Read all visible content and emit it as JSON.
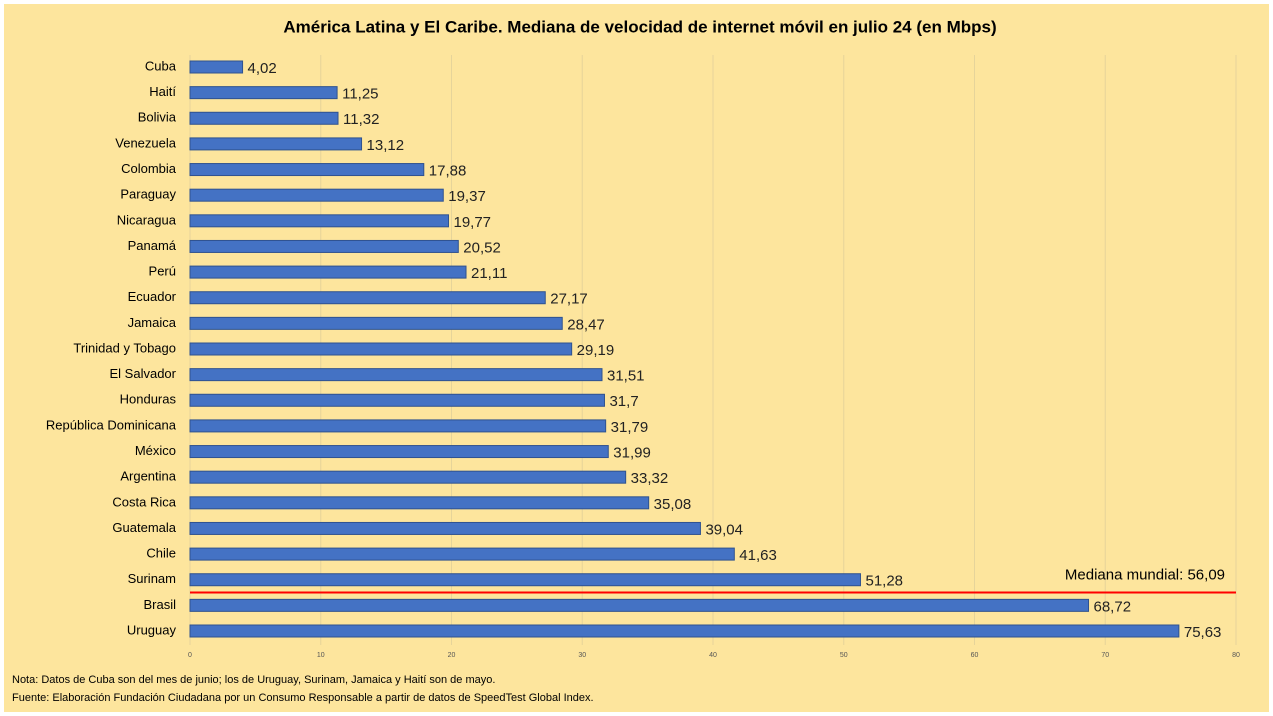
{
  "chart_data": {
    "type": "bar",
    "orientation": "horizontal",
    "title": "América Latina y El Caribe. Mediana de velocidad de internet móvil en julio 24 (en Mbps)",
    "categories": [
      "Cuba",
      "Haití",
      "Bolivia",
      "Venezuela",
      "Colombia",
      "Paraguay",
      "Nicaragua",
      "Panamá",
      "Perú",
      "Ecuador",
      "Jamaica",
      "Trinidad y Tobago",
      "El Salvador",
      "Honduras",
      "República Dominicana",
      "México",
      "Argentina",
      "Costa Rica",
      "Guatemala",
      "Chile",
      "Surinam",
      "Brasil",
      "Uruguay"
    ],
    "values": [
      4.02,
      11.25,
      11.32,
      13.12,
      17.88,
      19.37,
      19.77,
      20.52,
      21.11,
      27.17,
      28.47,
      29.19,
      31.51,
      31.7,
      31.79,
      31.99,
      33.32,
      35.08,
      39.04,
      41.63,
      51.28,
      68.72,
      75.63
    ],
    "value_labels": [
      "4,02",
      "11,25",
      "11,32",
      "13,12",
      "17,88",
      "19,37",
      "19,77",
      "20,52",
      "21,11",
      "27,17",
      "28,47",
      "29,19",
      "31,51",
      "31,7",
      "31,79",
      "31,99",
      "33,32",
      "35,08",
      "39,04",
      "41,63",
      "51,28",
      "68,72",
      "75,63"
    ],
    "color": "#4472c4",
    "xlim": [
      0,
      80
    ],
    "xticks": [
      0,
      10,
      20,
      30,
      40,
      50,
      60,
      70,
      80
    ],
    "grid": true,
    "annotation": "Mediana mundial: 56,09",
    "annotation_color": "#ff0000",
    "notes": [
      "Nota: Datos de Cuba son del mes de junio; los de Uruguay, Surinam, Jamaica y Haití son de mayo.",
      "Fuente: Elaboración Fundación Ciudadana por un Consumo Responsable a partir de datos de SpeedTest Global Index."
    ]
  }
}
